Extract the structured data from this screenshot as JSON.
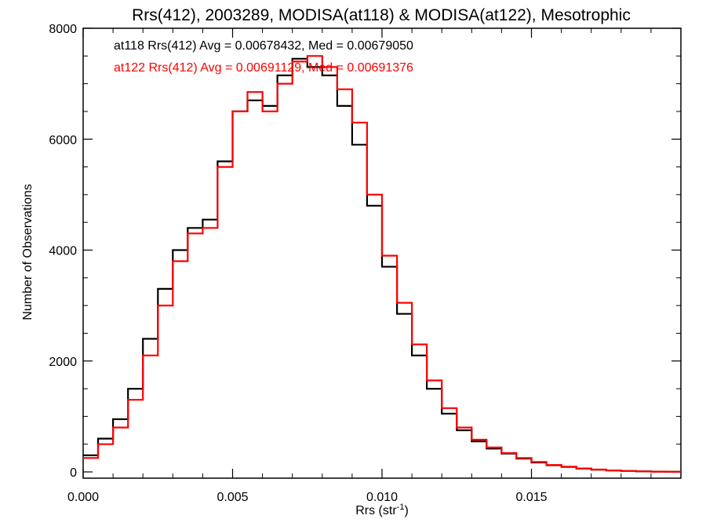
{
  "chart_data": {
    "type": "line",
    "title": "Rrs(412), 2003289, MODISA(at118) & MODISA(at122), Mesotrophic",
    "xlabel": "Rrs (str",
    "xlabel_sup": "-1",
    "xlabel_close": ")",
    "ylabel": "Number of Observations",
    "xlim": [
      0.0,
      0.02
    ],
    "ylim": [
      0,
      8000
    ],
    "xticks": [
      0.0,
      0.005,
      0.01,
      0.015
    ],
    "xtick_labels": [
      "0.000",
      "0.005",
      "0.010",
      "0.015"
    ],
    "yticks": [
      0,
      2000,
      4000,
      6000,
      8000
    ],
    "ytick_labels": [
      "0",
      "2000",
      "4000",
      "6000",
      "8000"
    ],
    "grid": false,
    "legend_placement": "top-left",
    "x": [
      0.0,
      0.0005,
      0.001,
      0.0015,
      0.002,
      0.0025,
      0.003,
      0.0035,
      0.004,
      0.0045,
      0.005,
      0.0055,
      0.006,
      0.0065,
      0.007,
      0.0075,
      0.008,
      0.0085,
      0.009,
      0.0095,
      0.01,
      0.0105,
      0.011,
      0.0115,
      0.012,
      0.0125,
      0.013,
      0.0135,
      0.014,
      0.0145,
      0.015,
      0.0155,
      0.016,
      0.0165,
      0.017,
      0.0175,
      0.018,
      0.0185,
      0.019,
      0.0195,
      0.02
    ],
    "series": [
      {
        "name": "at118",
        "color": "#000000",
        "values": [
          300,
          600,
          950,
          1500,
          2400,
          3300,
          4000,
          4400,
          4550,
          5600,
          6500,
          6700,
          6600,
          7150,
          7450,
          7300,
          7150,
          6600,
          5900,
          4800,
          3700,
          2850,
          2100,
          1500,
          1050,
          750,
          550,
          420,
          330,
          240,
          170,
          120,
          90,
          60,
          40,
          25,
          15,
          10,
          6,
          3,
          2
        ]
      },
      {
        "name": "at122",
        "color": "#ff0000",
        "values": [
          250,
          500,
          800,
          1300,
          2100,
          3000,
          3800,
          4300,
          4400,
          5500,
          6500,
          6850,
          6500,
          7000,
          7400,
          7500,
          7300,
          6900,
          6300,
          5000,
          3900,
          3050,
          2300,
          1650,
          1150,
          800,
          580,
          440,
          340,
          250,
          180,
          125,
          95,
          62,
          42,
          27,
          16,
          10,
          6,
          3,
          2
        ]
      }
    ],
    "legend": [
      {
        "text": "at118 Rrs(412) Avg = 0.00678432, Med = 0.00679050",
        "color": "#000000"
      },
      {
        "text": "at122 Rrs(412) Avg = 0.00691129, Med = 0.00691376",
        "color": "#ff0000"
      }
    ]
  }
}
